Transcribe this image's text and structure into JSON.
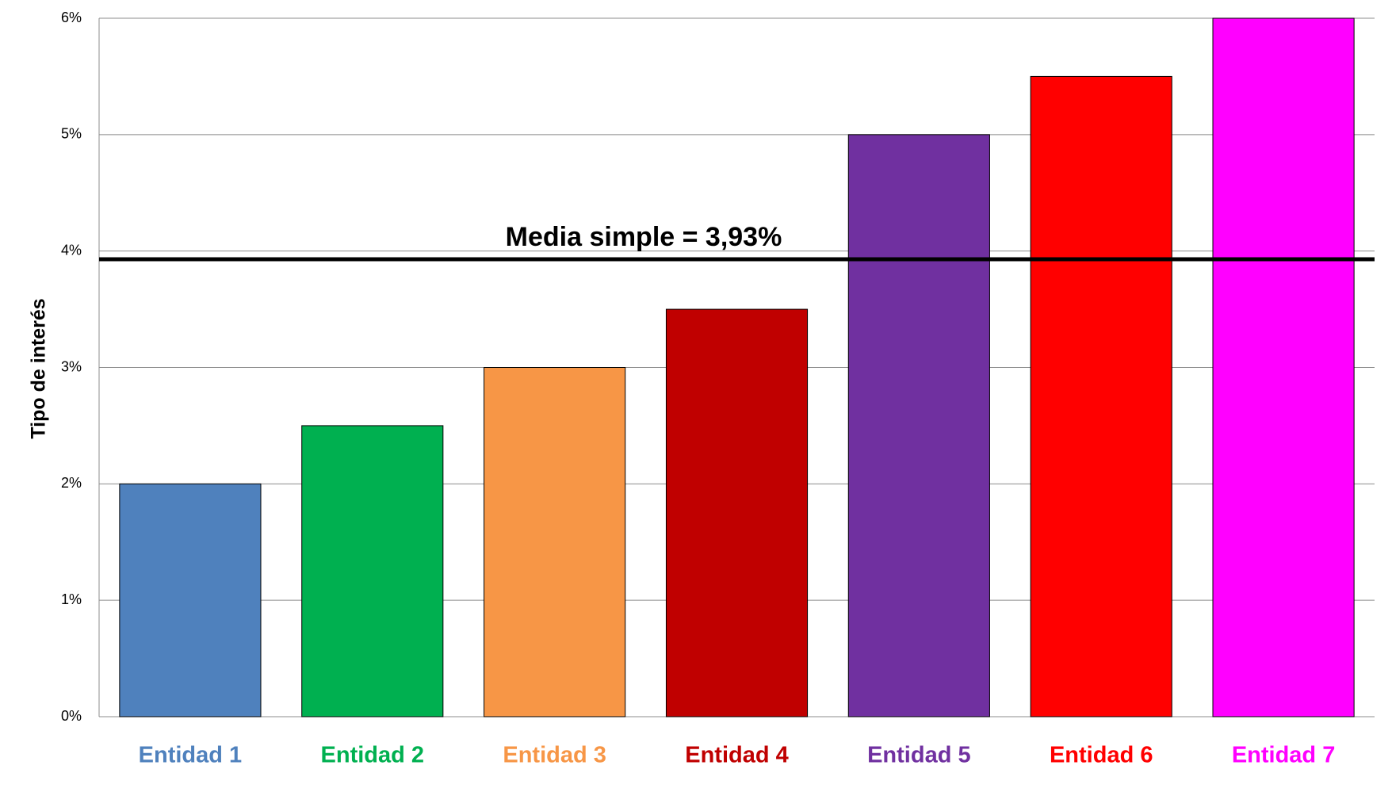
{
  "chart_data": {
    "type": "bar",
    "y_axis_label": "Tipo de interés",
    "categories": [
      "Entidad 1",
      "Entidad 2",
      "Entidad 3",
      "Entidad 4",
      "Entidad 5",
      "Entidad 6",
      "Entidad 7"
    ],
    "values": [
      2,
      2.5,
      3,
      3.5,
      5,
      5.5,
      6
    ],
    "colors": [
      "#4f81bd",
      "#00b050",
      "#f79646",
      "#c00000",
      "#7030a0",
      "#ff0000",
      "#ff00ff"
    ],
    "ylim": [
      0,
      6
    ],
    "yticks": [
      {
        "value": 0,
        "label": "0%"
      },
      {
        "value": 1,
        "label": "1%"
      },
      {
        "value": 2,
        "label": "2%"
      },
      {
        "value": 3,
        "label": "3%"
      },
      {
        "value": 4,
        "label": "4%"
      },
      {
        "value": 5,
        "label": "5%"
      },
      {
        "value": 6,
        "label": "6%"
      }
    ],
    "grid": true,
    "mean_line": {
      "value": 3.93,
      "label": "Media simple = 3,93%"
    }
  }
}
